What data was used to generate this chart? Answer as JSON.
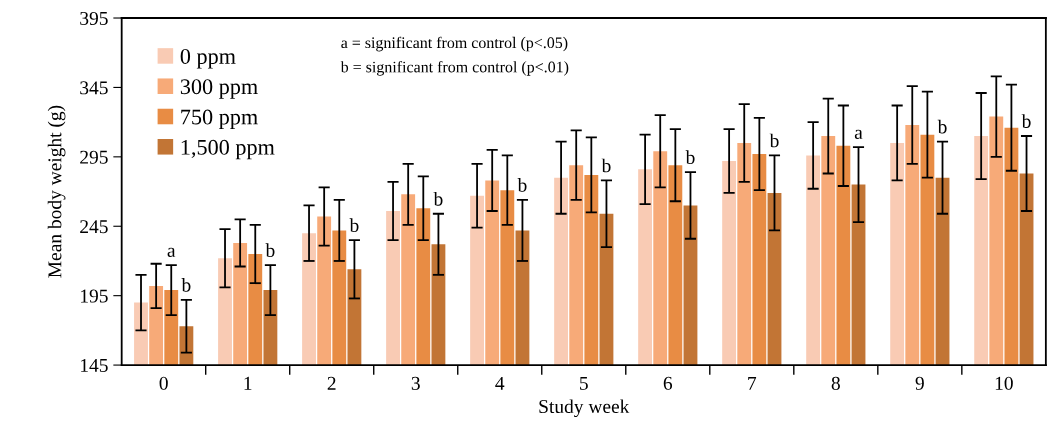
{
  "chart_data": {
    "type": "bar",
    "xlabel": "Study week",
    "ylabel": "Mean body weight (g)",
    "categories": [
      "0",
      "1",
      "2",
      "3",
      "4",
      "5",
      "6",
      "7",
      "8",
      "9",
      "10"
    ],
    "ylim": [
      145,
      395
    ],
    "yticks": [
      145,
      195,
      245,
      295,
      345,
      395
    ],
    "grid": false,
    "legend": "top left",
    "series": [
      {
        "name": "0 ppm",
        "color": "#f9cbb4",
        "values": [
          190,
          222,
          240,
          256,
          267,
          280,
          286,
          292,
          296,
          305,
          310
        ],
        "errors": [
          20,
          21,
          20,
          21,
          23,
          26,
          25,
          23,
          24,
          27,
          31
        ]
      },
      {
        "name": "300 ppm",
        "color": "#f7aa78",
        "values": [
          202,
          233,
          252,
          268,
          278,
          289,
          299,
          305,
          310,
          318,
          324
        ],
        "errors": [
          16,
          17,
          21,
          22,
          22,
          25,
          26,
          28,
          27,
          28,
          29
        ]
      },
      {
        "name": "750 ppm",
        "color": "#e88c44",
        "values": [
          199,
          225,
          242,
          258,
          271,
          282,
          289,
          297,
          303,
          311,
          316
        ],
        "errors": [
          18,
          21,
          22,
          23,
          25,
          27,
          26,
          26,
          29,
          31,
          31
        ]
      },
      {
        "name": "1,500 ppm",
        "color": "#c27535",
        "values": [
          173,
          199,
          214,
          232,
          242,
          254,
          260,
          269,
          275,
          280,
          283
        ],
        "errors": [
          19,
          18,
          21,
          22,
          22,
          24,
          24,
          27,
          27,
          26,
          27
        ]
      }
    ],
    "annotations": [
      "a = significant from control (p<.05)",
      "b = significant from control (p<.01)",
      {
        "text": "a",
        "x": "0",
        "y": 217
      },
      {
        "text": "b",
        "x": "0",
        "y": 192
      },
      {
        "text": "b",
        "x": "1",
        "y": 217
      },
      {
        "text": "b",
        "x": "2",
        "y": 235
      },
      {
        "text": "b",
        "x": "3",
        "y": 254
      },
      {
        "text": "b",
        "x": "4",
        "y": 264
      },
      {
        "text": "b",
        "x": "5",
        "y": 278
      },
      {
        "text": "b",
        "x": "6",
        "y": 284
      },
      {
        "text": "b",
        "x": "7",
        "y": 296
      },
      {
        "text": "a",
        "x": "8",
        "y": 302
      },
      {
        "text": "b",
        "x": "9",
        "y": 306
      },
      {
        "text": "b",
        "x": "10",
        "y": 310
      }
    ]
  }
}
